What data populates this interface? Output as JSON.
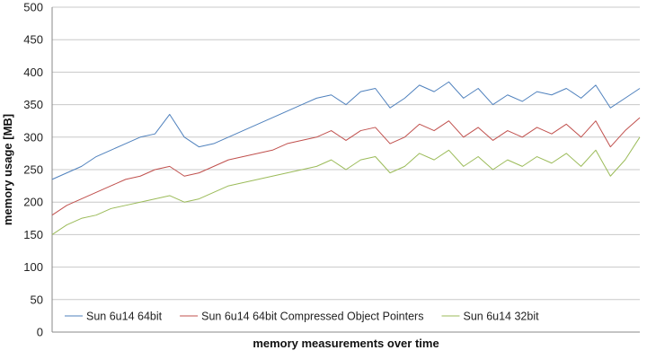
{
  "chart_data": {
    "type": "line",
    "title": "",
    "xlabel": "memory measurements over time",
    "ylabel": "memory usage [MB]",
    "ylim": [
      0,
      500
    ],
    "yticks": [
      0,
      50,
      100,
      150,
      200,
      250,
      300,
      350,
      400,
      450,
      500
    ],
    "xlim": [
      0,
      40
    ],
    "grid": "horizontal",
    "legend_position": "bottom-inside",
    "series": [
      {
        "name": "Sun 6u14 64bit",
        "color": "#4f81bd",
        "x": [
          0,
          1,
          2,
          3,
          4,
          5,
          6,
          7,
          8,
          9,
          10,
          11,
          12,
          13,
          14,
          15,
          16,
          17,
          18,
          19,
          20,
          21,
          22,
          23,
          24,
          25,
          26,
          27,
          28,
          29,
          30,
          31,
          32,
          33,
          34,
          35,
          36,
          37,
          38,
          39,
          40
        ],
        "values": [
          235,
          245,
          255,
          270,
          280,
          290,
          300,
          305,
          335,
          300,
          285,
          290,
          300,
          310,
          320,
          330,
          340,
          350,
          360,
          365,
          350,
          370,
          375,
          345,
          360,
          380,
          370,
          385,
          360,
          375,
          350,
          365,
          355,
          370,
          365,
          375,
          360,
          380,
          345,
          360,
          375
        ]
      },
      {
        "name": "Sun 6u14 64bit Compressed Object Pointers",
        "color": "#c0504d",
        "x": [
          0,
          1,
          2,
          3,
          4,
          5,
          6,
          7,
          8,
          9,
          10,
          11,
          12,
          13,
          14,
          15,
          16,
          17,
          18,
          19,
          20,
          21,
          22,
          23,
          24,
          25,
          26,
          27,
          28,
          29,
          30,
          31,
          32,
          33,
          34,
          35,
          36,
          37,
          38,
          39,
          40
        ],
        "values": [
          180,
          195,
          205,
          215,
          225,
          235,
          240,
          250,
          255,
          240,
          245,
          255,
          265,
          270,
          275,
          280,
          290,
          295,
          300,
          310,
          295,
          310,
          315,
          290,
          300,
          320,
          310,
          325,
          300,
          315,
          295,
          310,
          300,
          315,
          305,
          320,
          300,
          325,
          285,
          310,
          330
        ]
      },
      {
        "name": "Sun 6u14 32bit",
        "color": "#9bbb59",
        "x": [
          0,
          1,
          2,
          3,
          4,
          5,
          6,
          7,
          8,
          9,
          10,
          11,
          12,
          13,
          14,
          15,
          16,
          17,
          18,
          19,
          20,
          21,
          22,
          23,
          24,
          25,
          26,
          27,
          28,
          29,
          30,
          31,
          32,
          33,
          34,
          35,
          36,
          37,
          38,
          39,
          40
        ],
        "values": [
          150,
          165,
          175,
          180,
          190,
          195,
          200,
          205,
          210,
          200,
          205,
          215,
          225,
          230,
          235,
          240,
          245,
          250,
          255,
          265,
          250,
          265,
          270,
          245,
          255,
          275,
          265,
          280,
          255,
          270,
          250,
          265,
          255,
          270,
          260,
          275,
          255,
          280,
          240,
          265,
          300
        ]
      }
    ]
  }
}
